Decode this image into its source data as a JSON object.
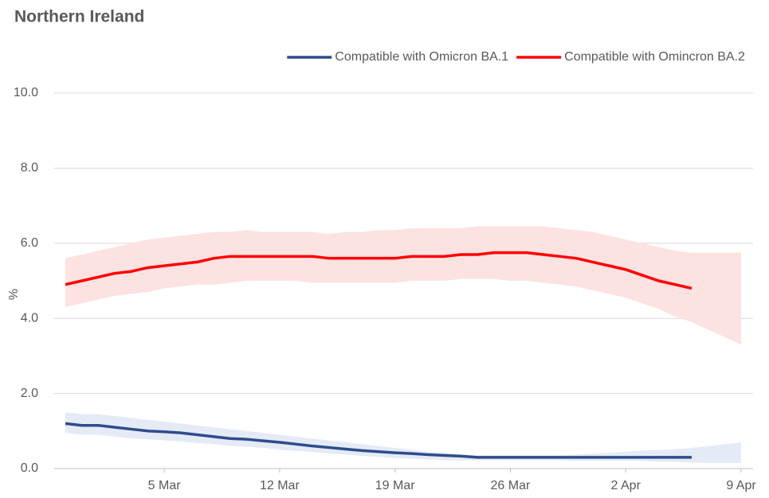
{
  "chart_data": {
    "type": "line",
    "title": "Northern Ireland",
    "y_label": "%",
    "legend": "top-right",
    "grid": true,
    "ylim": [
      0,
      10
    ],
    "yticks": [
      {
        "value": 0,
        "label": "0.0"
      },
      {
        "value": 2,
        "label": "2.0"
      },
      {
        "value": 4,
        "label": "4.0"
      },
      {
        "value": 6,
        "label": "6.0"
      },
      {
        "value": 8,
        "label": "8.0"
      },
      {
        "value": 10,
        "label": "10.0"
      }
    ],
    "categories": [
      null,
      null,
      null,
      null,
      null,
      null,
      "5 Mar",
      null,
      null,
      null,
      null,
      null,
      null,
      "12 Mar",
      null,
      null,
      null,
      null,
      null,
      null,
      "19 Mar",
      null,
      null,
      null,
      null,
      null,
      null,
      "26 Mar",
      null,
      null,
      null,
      null,
      null,
      null,
      "2 Apr",
      null,
      null,
      null,
      null,
      null,
      null,
      "9 Apr"
    ],
    "series": [
      {
        "name": "Compatible with Omicron BA.1",
        "color": "#2e4c8c",
        "band_color": "#e5ebf6",
        "values": [
          1.2,
          1.15,
          1.15,
          1.1,
          1.05,
          1.0,
          0.98,
          0.95,
          0.9,
          0.85,
          0.8,
          0.78,
          0.74,
          0.7,
          0.65,
          0.6,
          0.56,
          0.52,
          0.48,
          0.45,
          0.42,
          0.4,
          0.37,
          0.35,
          0.33,
          0.3,
          0.3,
          0.3,
          0.3,
          0.3,
          0.3,
          0.3,
          0.3,
          0.3,
          0.3,
          0.3,
          0.3,
          0.3,
          0.3,
          null,
          null,
          null
        ],
        "upper": [
          1.5,
          1.45,
          1.45,
          1.4,
          1.35,
          1.3,
          1.25,
          1.2,
          1.15,
          1.1,
          1.05,
          1.0,
          0.95,
          0.9,
          0.85,
          0.8,
          0.75,
          0.7,
          0.65,
          0.6,
          0.55,
          0.5,
          0.45,
          0.42,
          0.38,
          0.35,
          0.35,
          0.35,
          0.35,
          0.35,
          0.35,
          0.38,
          0.4,
          0.42,
          0.45,
          0.48,
          0.5,
          0.52,
          0.55,
          0.6,
          0.65,
          0.7
        ],
        "lower": [
          0.95,
          0.9,
          0.9,
          0.85,
          0.8,
          0.78,
          0.75,
          0.72,
          0.68,
          0.65,
          0.6,
          0.58,
          0.55,
          0.5,
          0.47,
          0.44,
          0.4,
          0.37,
          0.34,
          0.31,
          0.28,
          0.26,
          0.24,
          0.22,
          0.22,
          0.22,
          0.22,
          0.22,
          0.22,
          0.22,
          0.22,
          0.2,
          0.2,
          0.2,
          0.2,
          0.2,
          0.18,
          0.18,
          0.16,
          0.15,
          0.15,
          0.15
        ]
      },
      {
        "name": "Compatible with Omincron BA.2",
        "color": "#ff0000",
        "band_color": "#fde2e2",
        "values": [
          4.9,
          5.0,
          5.1,
          5.2,
          5.25,
          5.35,
          5.4,
          5.45,
          5.5,
          5.6,
          5.65,
          5.65,
          5.65,
          5.65,
          5.65,
          5.65,
          5.6,
          5.6,
          5.6,
          5.6,
          5.6,
          5.65,
          5.65,
          5.65,
          5.7,
          5.7,
          5.75,
          5.75,
          5.75,
          5.7,
          5.65,
          5.6,
          5.5,
          5.4,
          5.3,
          5.15,
          5.0,
          4.9,
          4.8,
          null,
          null,
          null
        ],
        "upper": [
          5.6,
          5.7,
          5.8,
          5.9,
          6.0,
          6.1,
          6.15,
          6.2,
          6.25,
          6.3,
          6.3,
          6.35,
          6.3,
          6.3,
          6.3,
          6.3,
          6.25,
          6.3,
          6.3,
          6.35,
          6.35,
          6.4,
          6.4,
          6.4,
          6.4,
          6.45,
          6.45,
          6.45,
          6.45,
          6.45,
          6.4,
          6.35,
          6.3,
          6.2,
          6.1,
          6.0,
          5.9,
          5.8,
          5.75,
          5.75,
          5.75,
          5.75
        ],
        "lower": [
          4.3,
          4.4,
          4.5,
          4.6,
          4.65,
          4.7,
          4.8,
          4.85,
          4.9,
          4.9,
          4.95,
          5.0,
          5.0,
          5.0,
          5.0,
          4.95,
          4.95,
          4.95,
          4.95,
          4.95,
          4.95,
          5.0,
          5.0,
          5.0,
          5.05,
          5.05,
          5.05,
          5.0,
          5.0,
          4.95,
          4.9,
          4.85,
          4.75,
          4.65,
          4.55,
          4.4,
          4.25,
          4.05,
          3.9,
          3.7,
          3.5,
          3.3
        ]
      }
    ]
  }
}
